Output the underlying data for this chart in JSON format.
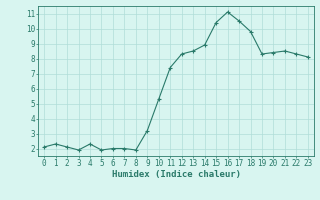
{
  "x": [
    0,
    1,
    2,
    3,
    4,
    5,
    6,
    7,
    8,
    9,
    10,
    11,
    12,
    13,
    14,
    15,
    16,
    17,
    18,
    19,
    20,
    21,
    22,
    23
  ],
  "y": [
    2.1,
    2.3,
    2.1,
    1.9,
    2.3,
    1.9,
    2.0,
    2.0,
    1.9,
    3.2,
    5.3,
    7.4,
    8.3,
    8.5,
    8.9,
    10.4,
    11.1,
    10.5,
    9.8,
    8.3,
    8.4,
    8.5,
    8.3,
    8.1
  ],
  "line_color": "#2a7a6a",
  "marker": "+",
  "marker_size": 3,
  "bg_color": "#d8f5f0",
  "grid_color": "#b0ddd8",
  "xlabel": "Humidex (Indice chaleur)",
  "xlim": [
    -0.5,
    23.5
  ],
  "ylim": [
    1.5,
    11.5
  ],
  "yticks": [
    2,
    3,
    4,
    5,
    6,
    7,
    8,
    9,
    10,
    11
  ],
  "xticks": [
    0,
    1,
    2,
    3,
    4,
    5,
    6,
    7,
    8,
    9,
    10,
    11,
    12,
    13,
    14,
    15,
    16,
    17,
    18,
    19,
    20,
    21,
    22,
    23
  ],
  "axis_color": "#2a7a6a",
  "label_fontsize": 6.5,
  "tick_fontsize": 5.5
}
